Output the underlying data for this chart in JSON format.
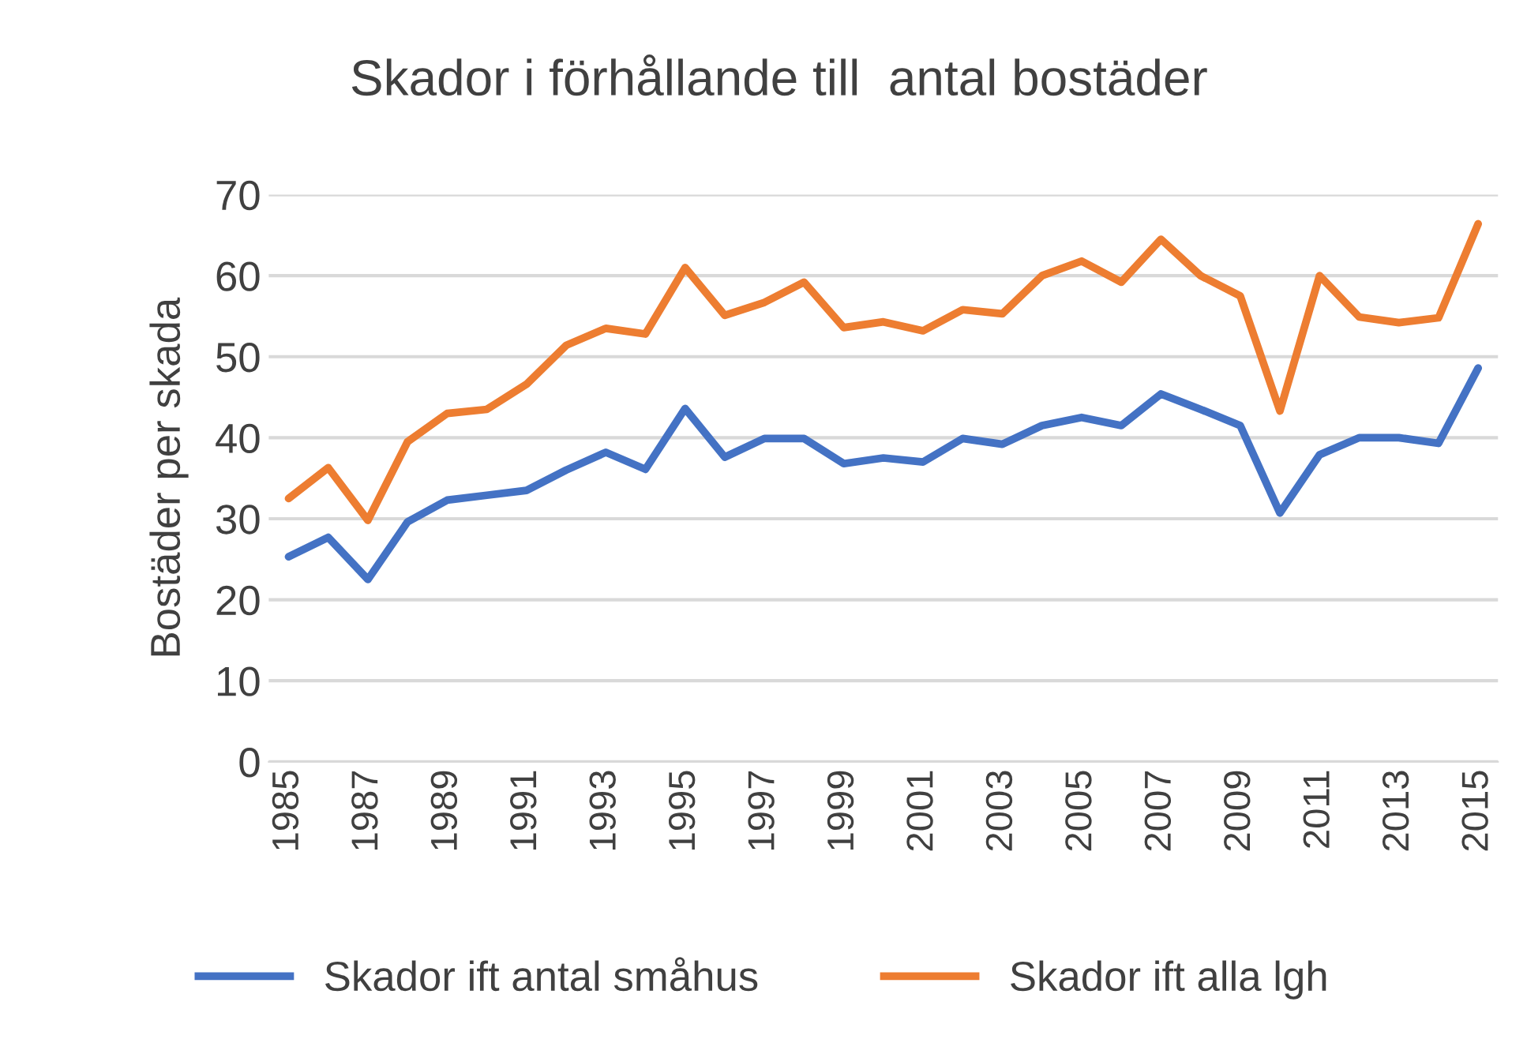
{
  "chart_data": {
    "type": "line",
    "title": "Skador i förhållande till  antal bostäder",
    "ylabel": "Bostäder per skada",
    "x": [
      1985,
      1986,
      1987,
      1988,
      1989,
      1990,
      1991,
      1992,
      1993,
      1994,
      1995,
      1996,
      1997,
      1998,
      1999,
      2000,
      2001,
      2002,
      2003,
      2004,
      2005,
      2006,
      2007,
      2008,
      2009,
      2010,
      2011,
      2012,
      2013,
      2014,
      2015
    ],
    "xlim": [
      1984.5,
      2015.5
    ],
    "xticks": [
      1985,
      1987,
      1989,
      1991,
      1993,
      1995,
      1997,
      1999,
      2001,
      2003,
      2005,
      2007,
      2009,
      2011,
      2013,
      2015
    ],
    "ylim": [
      0,
      70
    ],
    "yticks": [
      0,
      10,
      20,
      30,
      40,
      50,
      60,
      70
    ],
    "grid": "y",
    "legend": "bottom",
    "marker": "none",
    "line_style": "solid",
    "series": [
      {
        "name": "Skador ift antal småhus",
        "color": "#4472c4",
        "values": [
          25.3,
          27.7,
          22.5,
          29.6,
          32.3,
          32.9,
          33.5,
          36.0,
          38.2,
          36.1,
          43.6,
          37.6,
          39.9,
          39.9,
          36.8,
          37.5,
          37.0,
          39.9,
          39.2,
          41.5,
          42.5,
          41.5,
          45.4,
          43.5,
          41.5,
          30.7,
          37.9,
          40.0,
          40.0,
          39.3,
          48.6
        ]
      },
      {
        "name": "Skador ift alla lgh",
        "color": "#ed7d31",
        "values": [
          32.5,
          36.3,
          29.8,
          39.5,
          43.0,
          43.5,
          46.6,
          51.4,
          53.5,
          52.8,
          61.0,
          55.1,
          56.7,
          59.2,
          53.6,
          54.3,
          53.2,
          55.8,
          55.3,
          60.0,
          61.8,
          59.2,
          64.5,
          60.0,
          57.5,
          43.3,
          60.0,
          54.9,
          54.2,
          54.8,
          66.4
        ]
      }
    ]
  }
}
